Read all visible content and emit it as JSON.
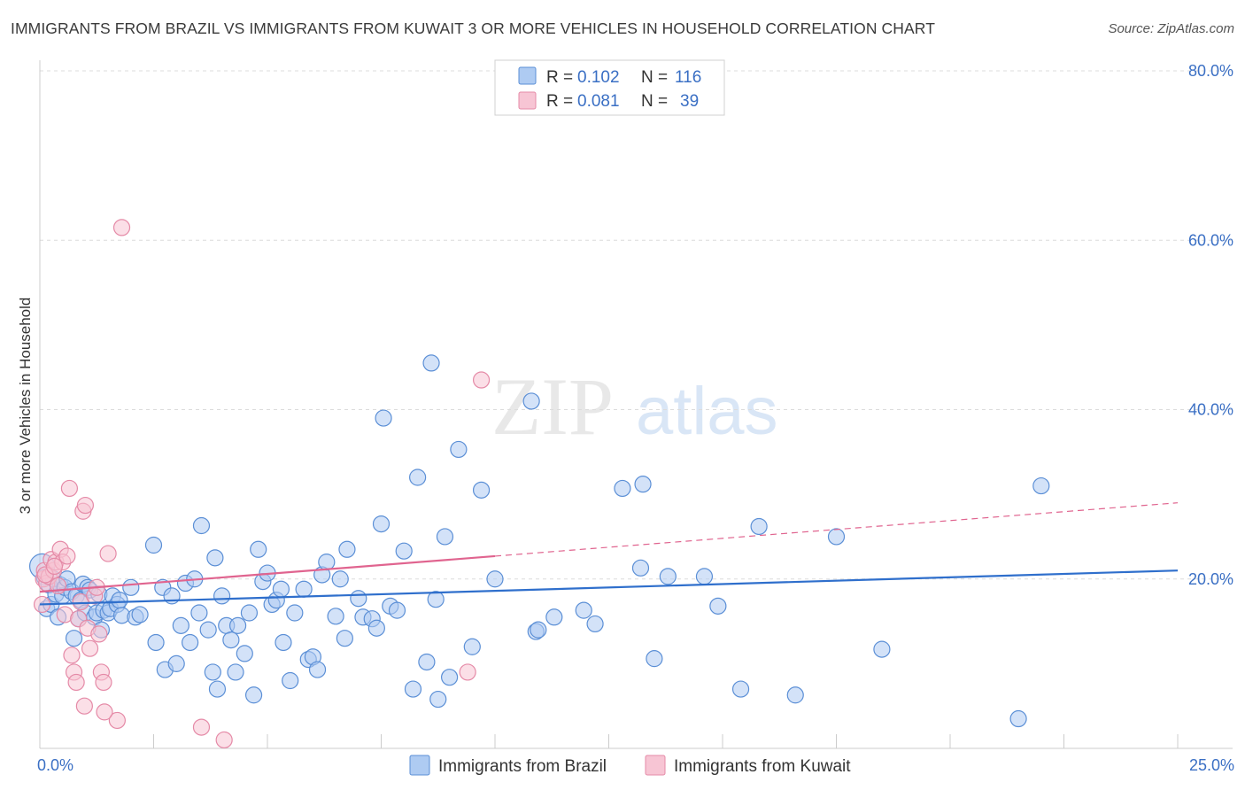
{
  "title": "IMMIGRANTS FROM BRAZIL VS IMMIGRANTS FROM KUWAIT 3 OR MORE VEHICLES IN HOUSEHOLD CORRELATION CHART",
  "source": "Source: ZipAtlas.com",
  "watermark": {
    "zip": "ZIP",
    "atlas": "atlas"
  },
  "colors": {
    "brazil_fill": "#aecbf2",
    "brazil_stroke": "#5b8fd6",
    "brazil_line": "#2f6fcc",
    "kuwait_fill": "#f7c5d4",
    "kuwait_stroke": "#e58aa7",
    "kuwait_line": "#e0648f",
    "tick": "#3a6fc4"
  },
  "legend": [
    {
      "r_label": "R =",
      "r_value": "0.102",
      "n_label": "N =",
      "n_value": "116"
    },
    {
      "r_label": "R =",
      "r_value": "0.081",
      "n_label": "N =",
      "n_value": "39"
    }
  ],
  "chart_data": {
    "type": "scatter",
    "ylabel": "3 or more Vehicles in Household",
    "xlim": [
      0,
      25
    ],
    "ylim": [
      0,
      80
    ],
    "y_ticks": [
      {
        "value": 80,
        "label": "80.0%"
      },
      {
        "value": 60,
        "label": "60.0%"
      },
      {
        "value": 40,
        "label": "40.0%"
      },
      {
        "value": 20,
        "label": "20.0%"
      }
    ],
    "x_tick_labels": [
      {
        "value": 0,
        "label": "0.0%"
      },
      {
        "value": 25,
        "label": "25.0%"
      }
    ],
    "legend_position": "top-center",
    "series": [
      {
        "name": "Immigrants from Brazil",
        "trend": {
          "x": [
            0,
            25
          ],
          "y": [
            17.0,
            21.0
          ],
          "dashed_from": null
        },
        "points": [
          [
            0.05,
            21.5
          ],
          [
            0.1,
            20.2
          ],
          [
            0.15,
            16.5
          ],
          [
            0.2,
            19.3
          ],
          [
            0.25,
            17.0
          ],
          [
            0.3,
            20.0
          ],
          [
            0.35,
            18.2
          ],
          [
            0.4,
            15.5
          ],
          [
            0.45,
            19.3
          ],
          [
            0.5,
            18.0
          ],
          [
            0.55,
            19.0
          ],
          [
            0.6,
            20.0
          ],
          [
            0.7,
            18.5
          ],
          [
            0.75,
            13.0
          ],
          [
            0.8,
            18.0
          ],
          [
            0.85,
            15.3
          ],
          [
            0.9,
            17.5
          ],
          [
            0.95,
            19.4
          ],
          [
            1.0,
            16.0
          ],
          [
            1.05,
            19.0
          ],
          [
            1.1,
            18.7
          ],
          [
            1.2,
            15.5
          ],
          [
            1.25,
            16.0
          ],
          [
            1.3,
            18.2
          ],
          [
            1.35,
            14.0
          ],
          [
            1.4,
            16.3
          ],
          [
            1.5,
            16.0
          ],
          [
            1.55,
            16.5
          ],
          [
            1.6,
            18.0
          ],
          [
            1.7,
            17.0
          ],
          [
            1.75,
            17.5
          ],
          [
            1.8,
            15.7
          ],
          [
            2.0,
            19.0
          ],
          [
            2.1,
            15.5
          ],
          [
            2.2,
            15.8
          ],
          [
            2.5,
            24.0
          ],
          [
            2.55,
            12.5
          ],
          [
            2.7,
            19.0
          ],
          [
            2.75,
            9.3
          ],
          [
            2.9,
            18.0
          ],
          [
            3.0,
            10.0
          ],
          [
            3.1,
            14.5
          ],
          [
            3.2,
            19.5
          ],
          [
            3.3,
            12.5
          ],
          [
            3.4,
            20.0
          ],
          [
            3.5,
            16.0
          ],
          [
            3.55,
            26.3
          ],
          [
            3.7,
            14.0
          ],
          [
            3.8,
            9.0
          ],
          [
            3.85,
            22.5
          ],
          [
            3.9,
            7.0
          ],
          [
            4.0,
            18.0
          ],
          [
            4.1,
            14.5
          ],
          [
            4.2,
            12.8
          ],
          [
            4.3,
            9.0
          ],
          [
            4.35,
            14.5
          ],
          [
            4.5,
            11.2
          ],
          [
            4.6,
            16.0
          ],
          [
            4.7,
            6.3
          ],
          [
            4.8,
            23.5
          ],
          [
            4.9,
            19.7
          ],
          [
            5.0,
            20.7
          ],
          [
            5.1,
            17.0
          ],
          [
            5.2,
            17.5
          ],
          [
            5.3,
            18.8
          ],
          [
            5.35,
            12.5
          ],
          [
            5.5,
            8.0
          ],
          [
            5.6,
            16.0
          ],
          [
            5.8,
            18.8
          ],
          [
            5.9,
            10.5
          ],
          [
            6.0,
            10.8
          ],
          [
            6.1,
            9.3
          ],
          [
            6.2,
            20.5
          ],
          [
            6.3,
            22.0
          ],
          [
            6.5,
            15.6
          ],
          [
            6.6,
            20.0
          ],
          [
            6.7,
            13.0
          ],
          [
            6.75,
            23.5
          ],
          [
            7.0,
            17.7
          ],
          [
            7.1,
            15.5
          ],
          [
            7.3,
            15.3
          ],
          [
            7.4,
            14.2
          ],
          [
            7.5,
            26.5
          ],
          [
            7.55,
            39.0
          ],
          [
            7.7,
            16.8
          ],
          [
            7.85,
            16.3
          ],
          [
            8.0,
            23.3
          ],
          [
            8.2,
            7.0
          ],
          [
            8.3,
            32.0
          ],
          [
            8.5,
            10.2
          ],
          [
            8.7,
            17.6
          ],
          [
            8.75,
            5.8
          ],
          [
            8.9,
            25.0
          ],
          [
            9.0,
            8.4
          ],
          [
            9.2,
            35.3
          ],
          [
            9.5,
            12.0
          ],
          [
            9.7,
            30.5
          ],
          [
            10.0,
            20.0
          ],
          [
            10.9,
            13.8
          ],
          [
            10.95,
            14.0
          ],
          [
            11.3,
            15.5
          ],
          [
            11.95,
            16.3
          ],
          [
            12.2,
            14.7
          ],
          [
            12.8,
            30.7
          ],
          [
            13.2,
            21.3
          ],
          [
            13.25,
            31.2
          ],
          [
            13.5,
            10.6
          ],
          [
            13.8,
            20.3
          ],
          [
            14.6,
            20.3
          ],
          [
            14.9,
            16.8
          ],
          [
            15.4,
            7.0
          ],
          [
            15.8,
            26.2
          ],
          [
            16.6,
            6.3
          ],
          [
            17.5,
            25.0
          ],
          [
            18.5,
            11.7
          ],
          [
            21.5,
            3.5
          ],
          [
            22.0,
            31.0
          ],
          [
            8.6,
            45.5
          ],
          [
            10.8,
            41.0
          ]
        ]
      },
      {
        "name": "Immigrants from Kuwait",
        "trend": {
          "x": [
            0,
            25
          ],
          "y": [
            18.5,
            29.0
          ],
          "solid_to": 10.0
        },
        "points": [
          [
            0.05,
            17.0
          ],
          [
            0.08,
            20.0
          ],
          [
            0.1,
            21.0
          ],
          [
            0.15,
            19.5
          ],
          [
            0.2,
            20.3
          ],
          [
            0.25,
            22.3
          ],
          [
            0.3,
            21.0
          ],
          [
            0.35,
            22.0
          ],
          [
            0.4,
            19.2
          ],
          [
            0.45,
            23.5
          ],
          [
            0.5,
            22.0
          ],
          [
            0.55,
            15.8
          ],
          [
            0.6,
            22.7
          ],
          [
            0.65,
            30.7
          ],
          [
            0.7,
            11.0
          ],
          [
            0.75,
            9.0
          ],
          [
            0.8,
            7.8
          ],
          [
            0.85,
            15.3
          ],
          [
            0.9,
            17.3
          ],
          [
            0.95,
            28.0
          ],
          [
            1.0,
            28.7
          ],
          [
            1.05,
            14.2
          ],
          [
            1.1,
            11.8
          ],
          [
            1.2,
            18.0
          ],
          [
            1.25,
            19.0
          ],
          [
            1.3,
            13.5
          ],
          [
            1.35,
            9.0
          ],
          [
            1.4,
            7.8
          ],
          [
            1.5,
            23.0
          ],
          [
            1.7,
            3.3
          ],
          [
            1.8,
            61.5
          ],
          [
            0.98,
            5.0
          ],
          [
            1.42,
            4.3
          ],
          [
            3.55,
            2.5
          ],
          [
            4.05,
            1.0
          ],
          [
            9.4,
            9.0
          ],
          [
            9.7,
            43.5
          ],
          [
            0.12,
            20.5
          ],
          [
            0.32,
            21.5
          ]
        ]
      }
    ]
  }
}
